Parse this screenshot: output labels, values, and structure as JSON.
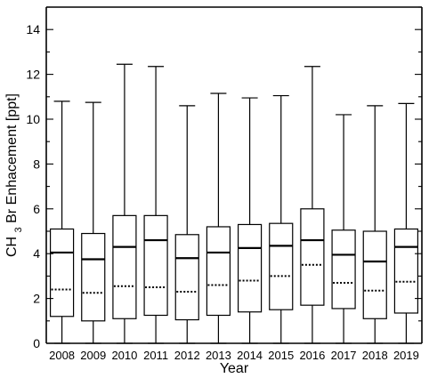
{
  "chart_data": {
    "type": "box",
    "title": "",
    "xlabel": "Year",
    "ylabel": {
      "prefix": "CH",
      "subscript": "3",
      "suffix": "Br Enhacement [ppt]"
    },
    "ylim": [
      0,
      15
    ],
    "yticks": [
      0,
      2,
      4,
      6,
      8,
      10,
      12,
      14
    ],
    "grid": false,
    "legend": "none",
    "categories": [
      "2008",
      "2009",
      "2010",
      "2011",
      "2012",
      "2013",
      "2014",
      "2015",
      "2016",
      "2017",
      "2018",
      "2019"
    ],
    "series": [
      {
        "category": "2008",
        "min": 0.0,
        "q1": 1.2,
        "median": 4.05,
        "q3": 5.1,
        "max": 10.8,
        "mean": 2.4
      },
      {
        "category": "2009",
        "min": 0.0,
        "q1": 1.0,
        "median": 3.75,
        "q3": 4.9,
        "max": 10.75,
        "mean": 2.25
      },
      {
        "category": "2010",
        "min": 0.0,
        "q1": 1.1,
        "median": 4.3,
        "q3": 5.7,
        "max": 12.45,
        "mean": 2.55
      },
      {
        "category": "2011",
        "min": 0.0,
        "q1": 1.25,
        "median": 4.6,
        "q3": 5.7,
        "max": 12.35,
        "mean": 2.5
      },
      {
        "category": "2012",
        "min": 0.0,
        "q1": 1.05,
        "median": 3.8,
        "q3": 4.85,
        "max": 10.6,
        "mean": 2.3
      },
      {
        "category": "2013",
        "min": 0.0,
        "q1": 1.25,
        "median": 4.05,
        "q3": 5.2,
        "max": 11.15,
        "mean": 2.6
      },
      {
        "category": "2014",
        "min": 0.0,
        "q1": 1.4,
        "median": 4.25,
        "q3": 5.3,
        "max": 10.95,
        "mean": 2.8
      },
      {
        "category": "2015",
        "min": 0.0,
        "q1": 1.5,
        "median": 4.35,
        "q3": 5.35,
        "max": 11.05,
        "mean": 3.0
      },
      {
        "category": "2016",
        "min": 0.0,
        "q1": 1.7,
        "median": 4.6,
        "q3": 6.0,
        "max": 12.35,
        "mean": 3.5
      },
      {
        "category": "2017",
        "min": 0.0,
        "q1": 1.55,
        "median": 3.95,
        "q3": 5.05,
        "max": 10.2,
        "mean": 2.7
      },
      {
        "category": "2018",
        "min": 0.0,
        "q1": 1.1,
        "median": 3.65,
        "q3": 5.0,
        "max": 10.6,
        "mean": 2.35
      },
      {
        "category": "2019",
        "min": 0.0,
        "q1": 1.35,
        "median": 4.3,
        "q3": 5.1,
        "max": 10.7,
        "mean": 2.75
      }
    ]
  }
}
